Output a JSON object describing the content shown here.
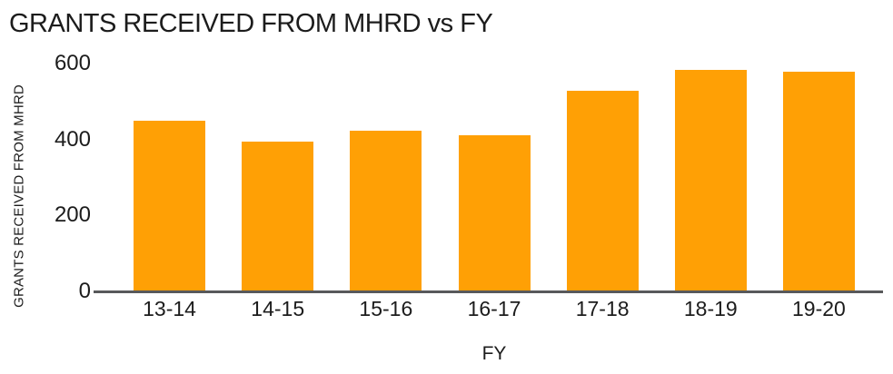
{
  "chart_data": {
    "type": "bar",
    "title": "GRANTS RECEIVED FROM MHRD vs FY",
    "xlabel": "FY",
    "ylabel": "GRANTS RECEIVED FROM MHRD",
    "categories": [
      "13-14",
      "14-15",
      "15-16",
      "16-17",
      "17-18",
      "18-19",
      "19-20"
    ],
    "values": [
      448,
      394,
      422,
      410,
      526,
      583,
      577
    ],
    "ylim": [
      0,
      600
    ],
    "yticks": [
      600,
      400,
      200,
      0
    ],
    "grid": false,
    "legend": false,
    "colors": {
      "bar": "#FFA005",
      "axis_line": "#58595B",
      "text": "#1C1C1C",
      "background": "#FFFFFF"
    }
  }
}
